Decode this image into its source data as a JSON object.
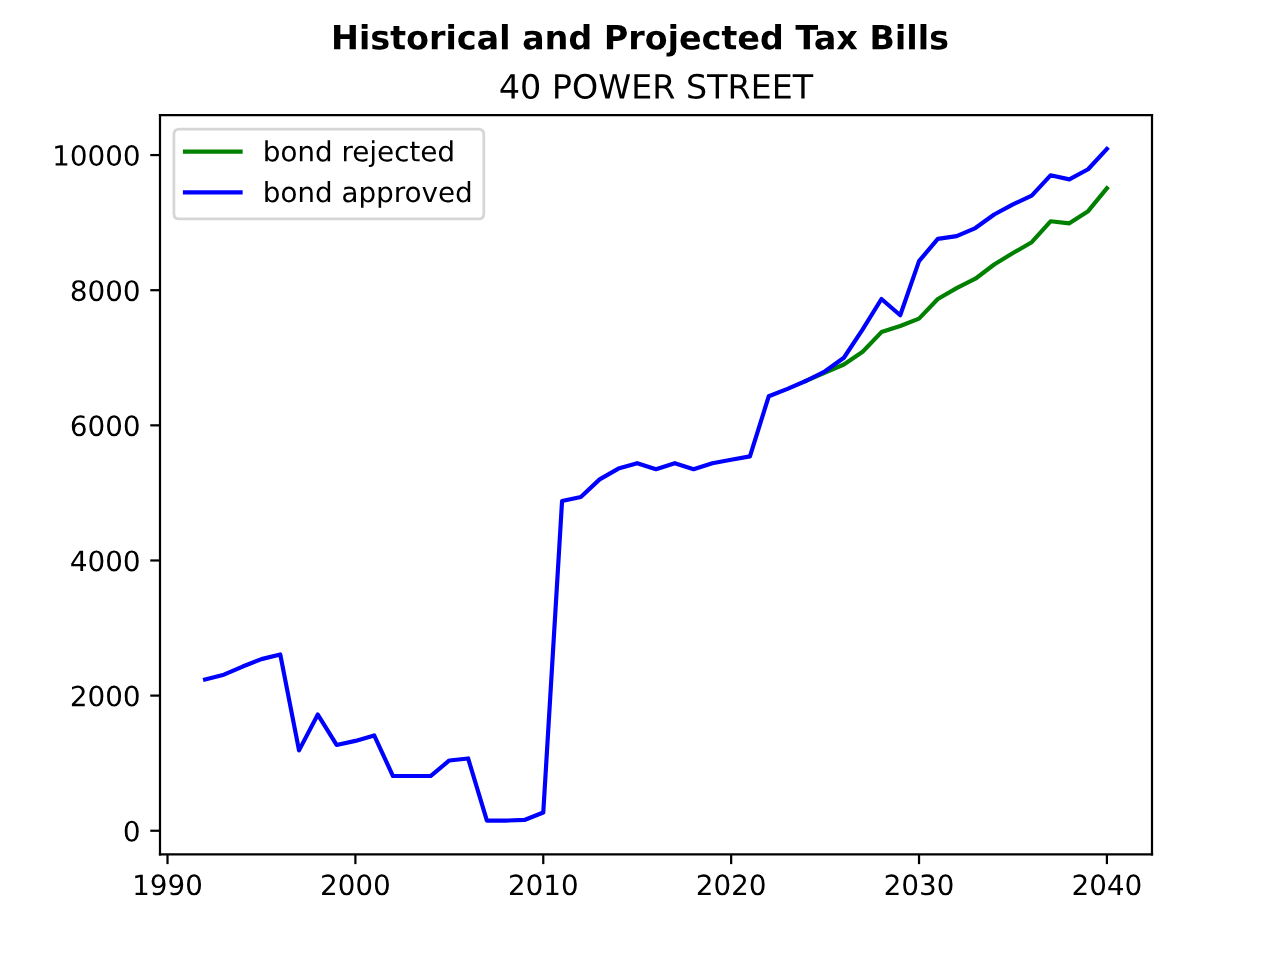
{
  "chart_data": {
    "type": "line",
    "title": "Historical and Projected Tax Bills",
    "subtitle": "40 POWER STREET",
    "x": [
      1992,
      1993,
      1994,
      1995,
      1996,
      1997,
      1998,
      1999,
      2000,
      2001,
      2002,
      2003,
      2004,
      2005,
      2006,
      2007,
      2008,
      2009,
      2010,
      2011,
      2012,
      2013,
      2014,
      2015,
      2016,
      2017,
      2018,
      2019,
      2020,
      2021,
      2022,
      2023,
      2024,
      2025,
      2026,
      2027,
      2028,
      2029,
      2030,
      2031,
      2032,
      2033,
      2034,
      2035,
      2036,
      2037,
      2038,
      2039,
      2040
    ],
    "series": [
      {
        "name": "bond rejected",
        "color": "#008000",
        "values": [
          null,
          null,
          null,
          null,
          null,
          null,
          null,
          null,
          null,
          null,
          null,
          null,
          null,
          null,
          null,
          null,
          null,
          null,
          null,
          null,
          null,
          null,
          null,
          null,
          null,
          null,
          null,
          null,
          null,
          null,
          null,
          null,
          6660,
          6780,
          6900,
          7090,
          7380,
          7470,
          7580,
          7870,
          8030,
          8170,
          8380,
          8550,
          8710,
          9020,
          8990,
          9170,
          9510
        ]
      },
      {
        "name": "bond approved",
        "color": "#0000ff",
        "values": [
          2240,
          2310,
          2430,
          2540,
          2610,
          1190,
          1720,
          1270,
          1330,
          1410,
          810,
          810,
          810,
          1040,
          1070,
          150,
          150,
          160,
          270,
          4880,
          4940,
          5200,
          5360,
          5440,
          5350,
          5440,
          5350,
          5440,
          5490,
          5540,
          6430,
          6540,
          6660,
          6800,
          7000,
          7420,
          7870,
          7630,
          8430,
          8760,
          8800,
          8920,
          9120,
          9270,
          9400,
          9700,
          9640,
          9790,
          10090
        ]
      }
    ],
    "xlim": [
      1989.6,
      2042.4
    ],
    "xticks": [
      1990,
      2000,
      2010,
      2020,
      2030,
      2040
    ],
    "ylim": [
      -350,
      10590
    ],
    "yticks": [
      0,
      2000,
      4000,
      6000,
      8000,
      10000
    ],
    "grid": false,
    "legend": "top left",
    "line_style": "solid",
    "marker": "none"
  }
}
